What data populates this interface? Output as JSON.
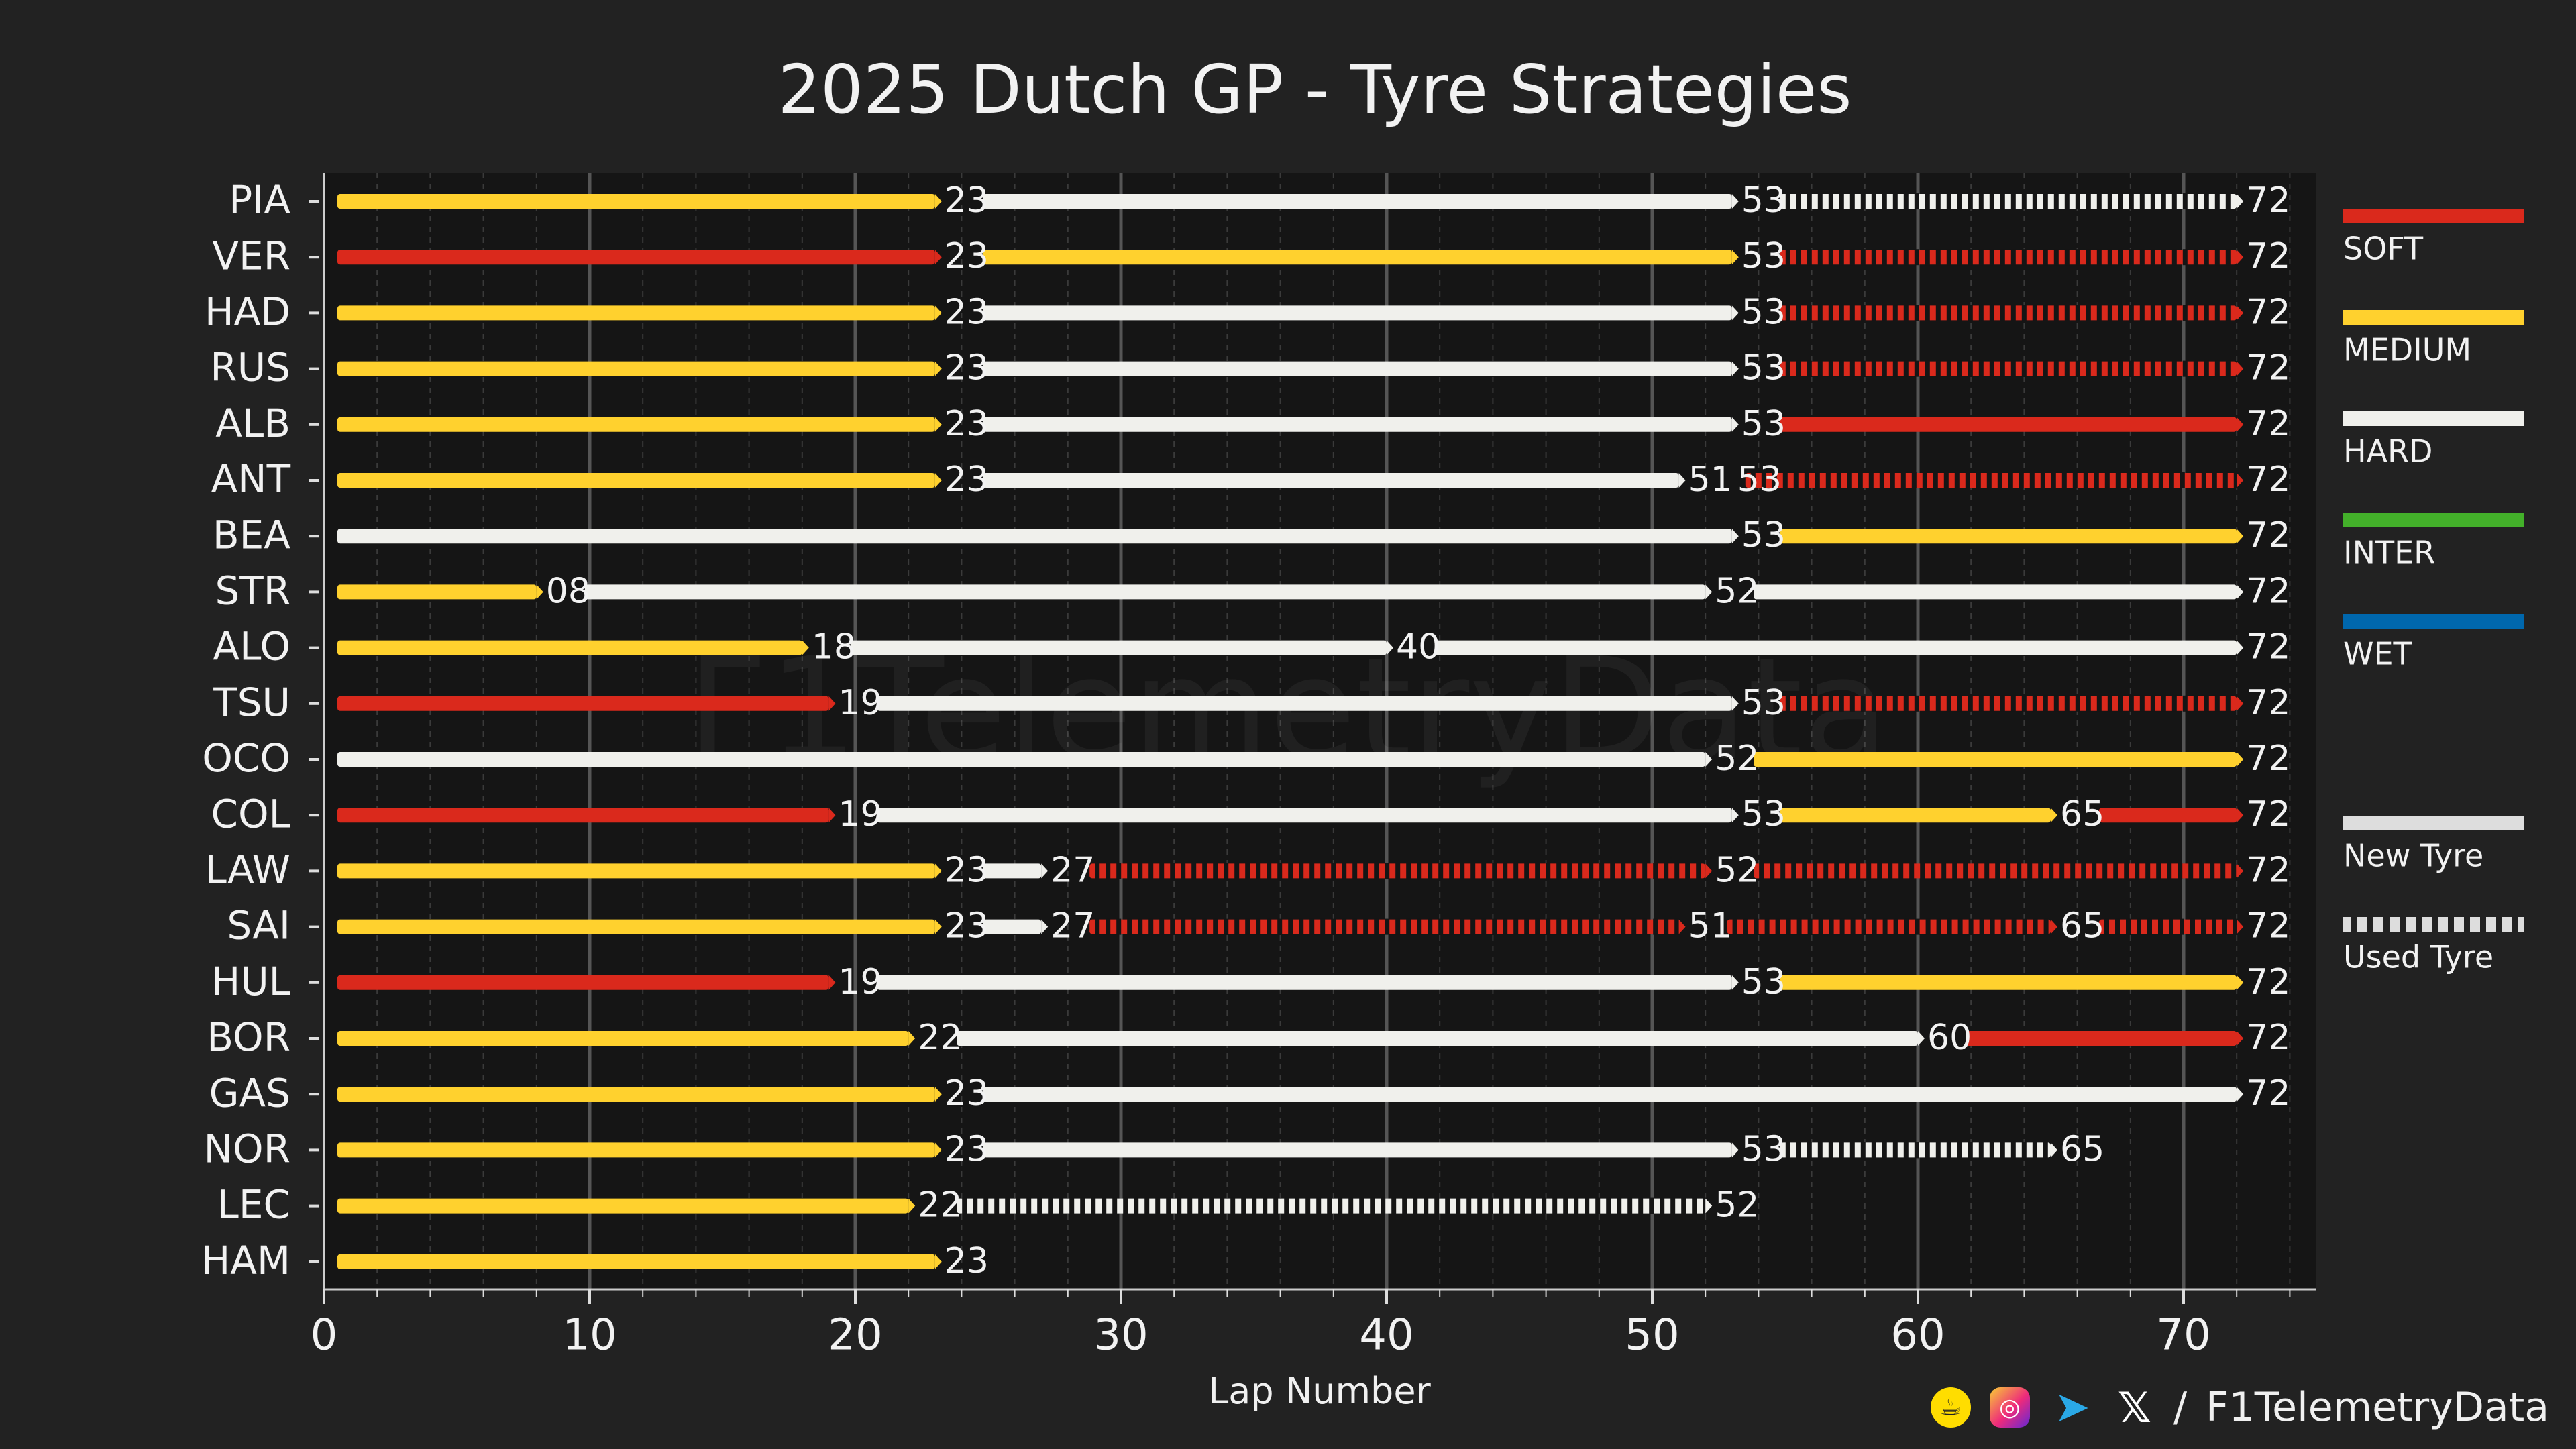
{
  "chart_data": {
    "type": "tyre-strategy",
    "title": "2025 Dutch GP - Tyre Strategies",
    "xlabel": "Lap Number",
    "xlim": [
      0,
      75
    ],
    "xticks": [
      0,
      10,
      20,
      30,
      40,
      50,
      60,
      70
    ],
    "compounds": {
      "SOFT": "#da291c",
      "MEDIUM": "#ffd12e",
      "HARD": "#f0f0ec",
      "INTER": "#43b02a",
      "WET": "#0067ad"
    },
    "legend": [
      {
        "label": "SOFT",
        "compound": "SOFT"
      },
      {
        "label": "MEDIUM",
        "compound": "MEDIUM"
      },
      {
        "label": "HARD",
        "compound": "HARD"
      },
      {
        "label": "INTER",
        "compound": "INTER"
      },
      {
        "label": "WET",
        "compound": "WET"
      },
      {
        "label": "New Tyre",
        "compound": "HARD",
        "used": false
      },
      {
        "label": "Used Tyre",
        "compound": "HARD",
        "used": true
      }
    ],
    "drivers": [
      {
        "code": "PIA",
        "stints": [
          {
            "compound": "MEDIUM",
            "start": 0,
            "end": 23,
            "used": false,
            "label": "23"
          },
          {
            "compound": "HARD",
            "start": 23,
            "end": 53,
            "used": false,
            "label": "53"
          },
          {
            "compound": "HARD",
            "start": 53,
            "end": 72,
            "used": true,
            "label": "72"
          }
        ]
      },
      {
        "code": "VER",
        "stints": [
          {
            "compound": "SOFT",
            "start": 0,
            "end": 23,
            "used": false,
            "label": "23"
          },
          {
            "compound": "MEDIUM",
            "start": 23,
            "end": 53,
            "used": false,
            "label": "53"
          },
          {
            "compound": "SOFT",
            "start": 53,
            "end": 72,
            "used": true,
            "label": "72"
          }
        ]
      },
      {
        "code": "HAD",
        "stints": [
          {
            "compound": "MEDIUM",
            "start": 0,
            "end": 23,
            "used": false,
            "label": "23"
          },
          {
            "compound": "HARD",
            "start": 23,
            "end": 53,
            "used": false,
            "label": "53"
          },
          {
            "compound": "SOFT",
            "start": 53,
            "end": 72,
            "used": true,
            "label": "72"
          }
        ]
      },
      {
        "code": "RUS",
        "stints": [
          {
            "compound": "MEDIUM",
            "start": 0,
            "end": 23,
            "used": false,
            "label": "23"
          },
          {
            "compound": "HARD",
            "start": 23,
            "end": 53,
            "used": false,
            "label": "53"
          },
          {
            "compound": "SOFT",
            "start": 53,
            "end": 72,
            "used": true,
            "label": "72"
          }
        ]
      },
      {
        "code": "ALB",
        "stints": [
          {
            "compound": "MEDIUM",
            "start": 0,
            "end": 23,
            "used": false,
            "label": "23"
          },
          {
            "compound": "HARD",
            "start": 23,
            "end": 53,
            "used": false,
            "label": "53"
          },
          {
            "compound": "SOFT",
            "start": 53,
            "end": 72,
            "used": false,
            "label": "72"
          }
        ]
      },
      {
        "code": "ANT",
        "stints": [
          {
            "compound": "MEDIUM",
            "start": 0,
            "end": 23,
            "used": false,
            "label": "23"
          },
          {
            "compound": "HARD",
            "start": 23,
            "end": 51,
            "used": false,
            "label": "51"
          },
          {
            "compound": "SOFT",
            "start": 53,
            "end": 72,
            "used": true,
            "label": "72",
            "start_label": "53"
          }
        ]
      },
      {
        "code": "BEA",
        "stints": [
          {
            "compound": "HARD",
            "start": 0,
            "end": 53,
            "used": false,
            "label": "53"
          },
          {
            "compound": "MEDIUM",
            "start": 53,
            "end": 72,
            "used": false,
            "label": "72"
          }
        ]
      },
      {
        "code": "STR",
        "stints": [
          {
            "compound": "MEDIUM",
            "start": 0,
            "end": 8,
            "used": false,
            "label": "08"
          },
          {
            "compound": "HARD",
            "start": 8,
            "end": 52,
            "used": false,
            "label": "52"
          },
          {
            "compound": "HARD",
            "start": 52,
            "end": 72,
            "used": false,
            "label": "72"
          }
        ]
      },
      {
        "code": "ALO",
        "stints": [
          {
            "compound": "MEDIUM",
            "start": 0,
            "end": 18,
            "used": false,
            "label": "18"
          },
          {
            "compound": "HARD",
            "start": 18,
            "end": 40,
            "used": false,
            "label": "40"
          },
          {
            "compound": "HARD",
            "start": 40,
            "end": 72,
            "used": false,
            "label": "72"
          }
        ]
      },
      {
        "code": "TSU",
        "stints": [
          {
            "compound": "SOFT",
            "start": 0,
            "end": 19,
            "used": false,
            "label": "19"
          },
          {
            "compound": "HARD",
            "start": 19,
            "end": 53,
            "used": false,
            "label": "53"
          },
          {
            "compound": "SOFT",
            "start": 53,
            "end": 72,
            "used": true,
            "label": "72"
          }
        ]
      },
      {
        "code": "OCO",
        "stints": [
          {
            "compound": "HARD",
            "start": 0,
            "end": 52,
            "used": false,
            "label": "52"
          },
          {
            "compound": "MEDIUM",
            "start": 52,
            "end": 72,
            "used": false,
            "label": "72"
          }
        ]
      },
      {
        "code": "COL",
        "stints": [
          {
            "compound": "SOFT",
            "start": 0,
            "end": 19,
            "used": false,
            "label": "19"
          },
          {
            "compound": "HARD",
            "start": 19,
            "end": 53,
            "used": false,
            "label": "53"
          },
          {
            "compound": "MEDIUM",
            "start": 53,
            "end": 65,
            "used": false,
            "label": "65"
          },
          {
            "compound": "SOFT",
            "start": 65,
            "end": 72,
            "used": false,
            "label": "72"
          }
        ]
      },
      {
        "code": "LAW",
        "stints": [
          {
            "compound": "MEDIUM",
            "start": 0,
            "end": 23,
            "used": false,
            "label": "23"
          },
          {
            "compound": "HARD",
            "start": 23,
            "end": 27,
            "used": false,
            "label": "27"
          },
          {
            "compound": "SOFT",
            "start": 27,
            "end": 52,
            "used": true,
            "label": "52"
          },
          {
            "compound": "SOFT",
            "start": 52,
            "end": 72,
            "used": true,
            "label": "72"
          }
        ]
      },
      {
        "code": "SAI",
        "stints": [
          {
            "compound": "MEDIUM",
            "start": 0,
            "end": 23,
            "used": false,
            "label": "23"
          },
          {
            "compound": "HARD",
            "start": 23,
            "end": 27,
            "used": false,
            "label": "27"
          },
          {
            "compound": "SOFT",
            "start": 27,
            "end": 51,
            "used": true,
            "label": "51"
          },
          {
            "compound": "SOFT",
            "start": 51,
            "end": 65,
            "used": true,
            "label": "65"
          },
          {
            "compound": "SOFT",
            "start": 65,
            "end": 72,
            "used": true,
            "label": "72"
          }
        ]
      },
      {
        "code": "HUL",
        "stints": [
          {
            "compound": "SOFT",
            "start": 0,
            "end": 19,
            "used": false,
            "label": "19"
          },
          {
            "compound": "HARD",
            "start": 19,
            "end": 53,
            "used": false,
            "label": "53"
          },
          {
            "compound": "MEDIUM",
            "start": 53,
            "end": 72,
            "used": false,
            "label": "72"
          }
        ]
      },
      {
        "code": "BOR",
        "stints": [
          {
            "compound": "MEDIUM",
            "start": 0,
            "end": 22,
            "used": false,
            "label": "22"
          },
          {
            "compound": "HARD",
            "start": 22,
            "end": 60,
            "used": false,
            "label": "60"
          },
          {
            "compound": "SOFT",
            "start": 60,
            "end": 72,
            "used": false,
            "label": "72"
          }
        ]
      },
      {
        "code": "GAS",
        "stints": [
          {
            "compound": "MEDIUM",
            "start": 0,
            "end": 23,
            "used": false,
            "label": "23"
          },
          {
            "compound": "HARD",
            "start": 23,
            "end": 72,
            "used": false,
            "label": "72"
          }
        ]
      },
      {
        "code": "NOR",
        "stints": [
          {
            "compound": "MEDIUM",
            "start": 0,
            "end": 23,
            "used": false,
            "label": "23"
          },
          {
            "compound": "HARD",
            "start": 23,
            "end": 53,
            "used": false,
            "label": "53"
          },
          {
            "compound": "HARD",
            "start": 53,
            "end": 65,
            "used": true,
            "label": "65"
          }
        ]
      },
      {
        "code": "LEC",
        "stints": [
          {
            "compound": "MEDIUM",
            "start": 0,
            "end": 22,
            "used": false,
            "label": "22"
          },
          {
            "compound": "HARD",
            "start": 22,
            "end": 52,
            "used": true,
            "label": "52"
          }
        ]
      },
      {
        "code": "HAM",
        "stints": [
          {
            "compound": "MEDIUM",
            "start": 0,
            "end": 23,
            "used": false,
            "label": "23"
          }
        ]
      }
    ]
  },
  "watermark": "F1TelemetryData",
  "footer": {
    "sep": "/",
    "handle": "F1TelemetryData",
    "icons": [
      "buy-me-a-coffee-icon",
      "instagram-icon",
      "telegram-icon",
      "x-icon"
    ]
  }
}
